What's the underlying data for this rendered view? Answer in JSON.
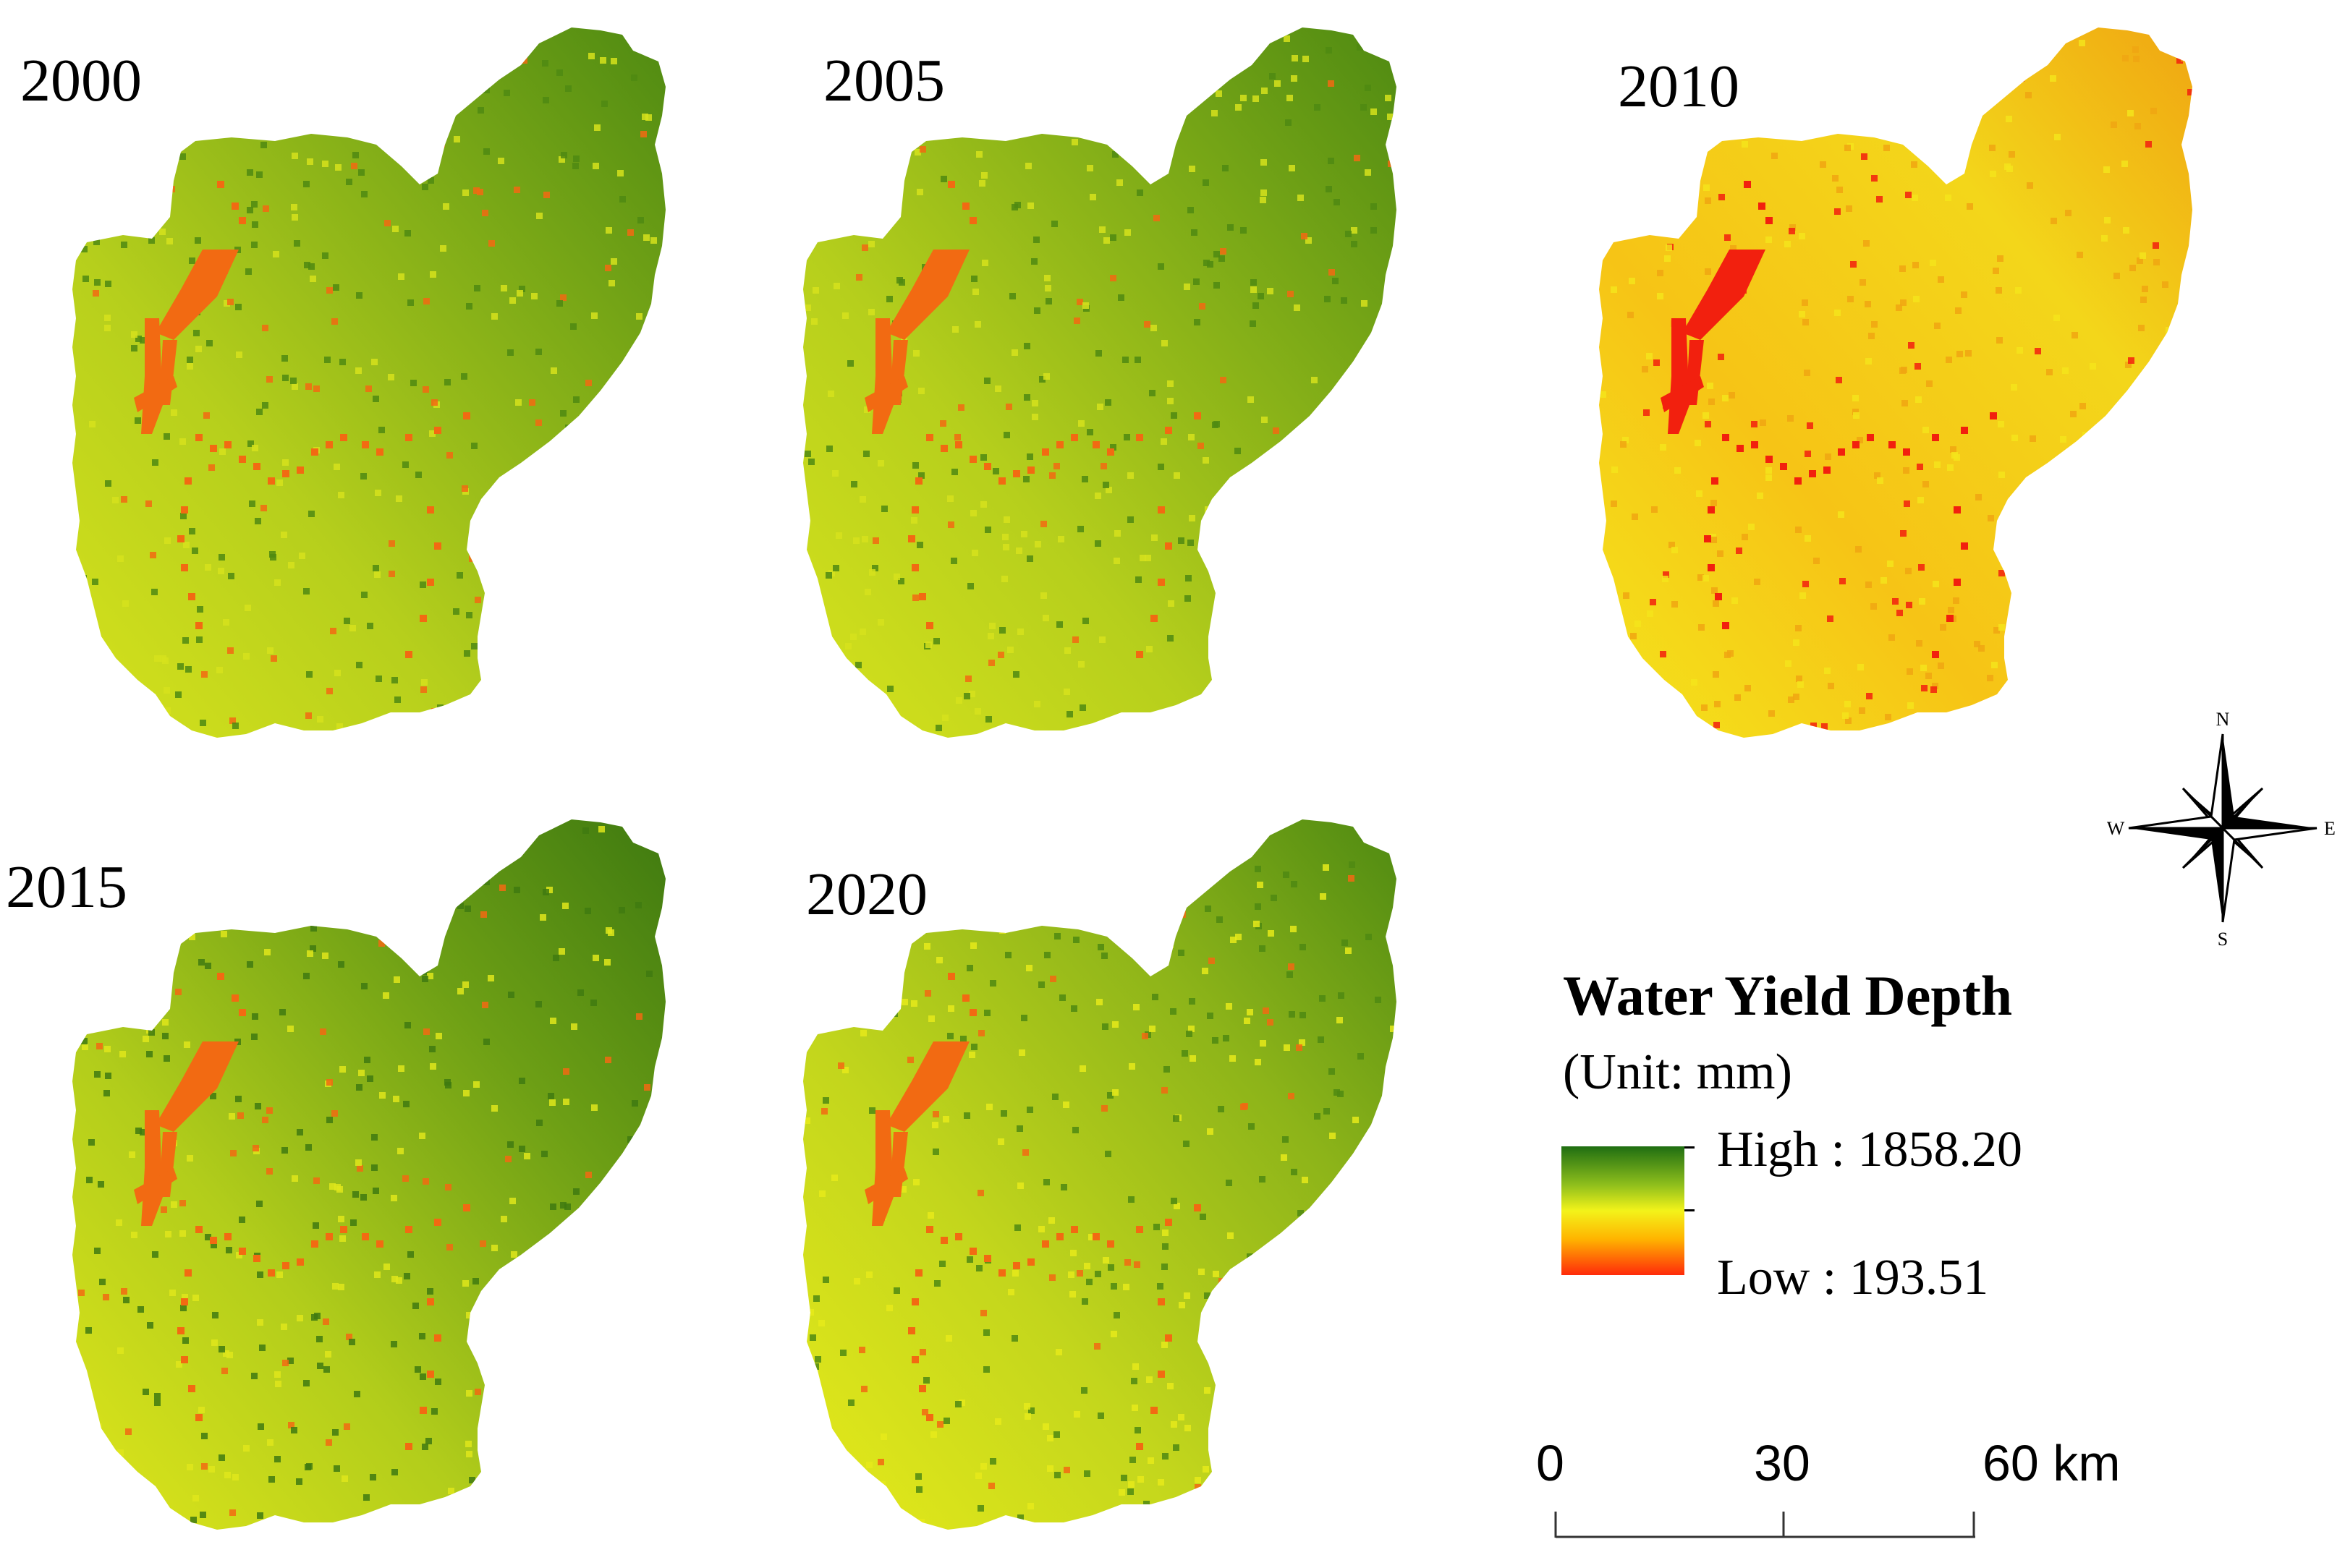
{
  "maps": [
    {
      "year": "2000",
      "palette": "green"
    },
    {
      "year": "2005",
      "palette": "green"
    },
    {
      "year": "2010",
      "palette": "orange"
    },
    {
      "year": "2015",
      "palette": "green-dark"
    },
    {
      "year": "2020",
      "palette": "green-light"
    }
  ],
  "legend": {
    "title": "Water Yield Depth",
    "unit": "(Unit: mm)",
    "high_label": "High : 1858.20",
    "low_label": "Low : 193.51",
    "high_value": 1858.2,
    "low_value": 193.51,
    "ramp_colors": [
      "#1f6e12",
      "#8fbf1c",
      "#f3f31a",
      "#ffb400",
      "#ff2a0a"
    ]
  },
  "scale_bar": {
    "ticks": [
      "0",
      "30",
      "60 km"
    ]
  },
  "compass": {
    "north": "N",
    "south": "S",
    "east": "E",
    "west": "W"
  },
  "colors": {
    "river": "#f26a12",
    "river_2010": "#f2200e"
  }
}
